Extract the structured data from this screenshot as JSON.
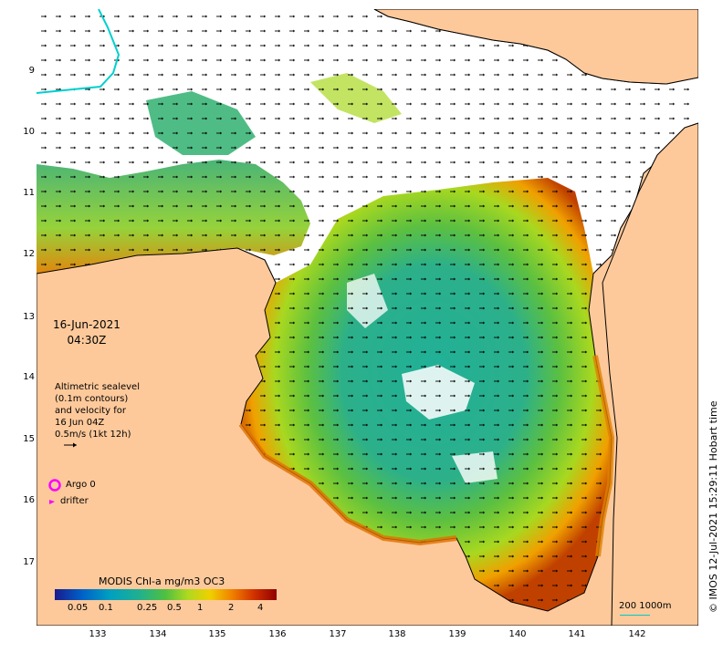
{
  "map": {
    "timestamp_date": "16-Jun-2021",
    "timestamp_time": "04:30Z",
    "altimetry_lines": [
      "Altimetric sealevel",
      "(0.1m contours)",
      "and velocity for",
      "16 Jun 04Z",
      "0.5m/s (1kt 12h)"
    ],
    "legend": {
      "argo_label": "Argo 0",
      "drifter_label": "drifter",
      "argo_color": "#ff00ff",
      "drifter_color": "#ff00ff"
    },
    "colorbar": {
      "title": "MODIS Chl-a mg/m3 OC3",
      "tick_labels": [
        "0.05",
        "0.1",
        "0.25",
        "0.5",
        "1",
        "2",
        "4"
      ],
      "colors": [
        "#1a1a8c",
        "#0060c8",
        "#00a0c0",
        "#20b090",
        "#50c040",
        "#b0d820",
        "#f0d000",
        "#f08000",
        "#d03000",
        "#900000"
      ]
    },
    "scale_bar_label": "200  1000m",
    "credit": "© IMOS 12-Jul-2021 15:29:11 Hobart time",
    "y_ticks": [
      "9",
      "10",
      "11",
      "12",
      "13",
      "14",
      "15",
      "16",
      "17"
    ],
    "x_ticks": [
      "133",
      "134",
      "135",
      "136",
      "137",
      "138",
      "139",
      "140",
      "141",
      "142"
    ],
    "land_color": "#fdc99b",
    "coast_color": "#000000"
  }
}
